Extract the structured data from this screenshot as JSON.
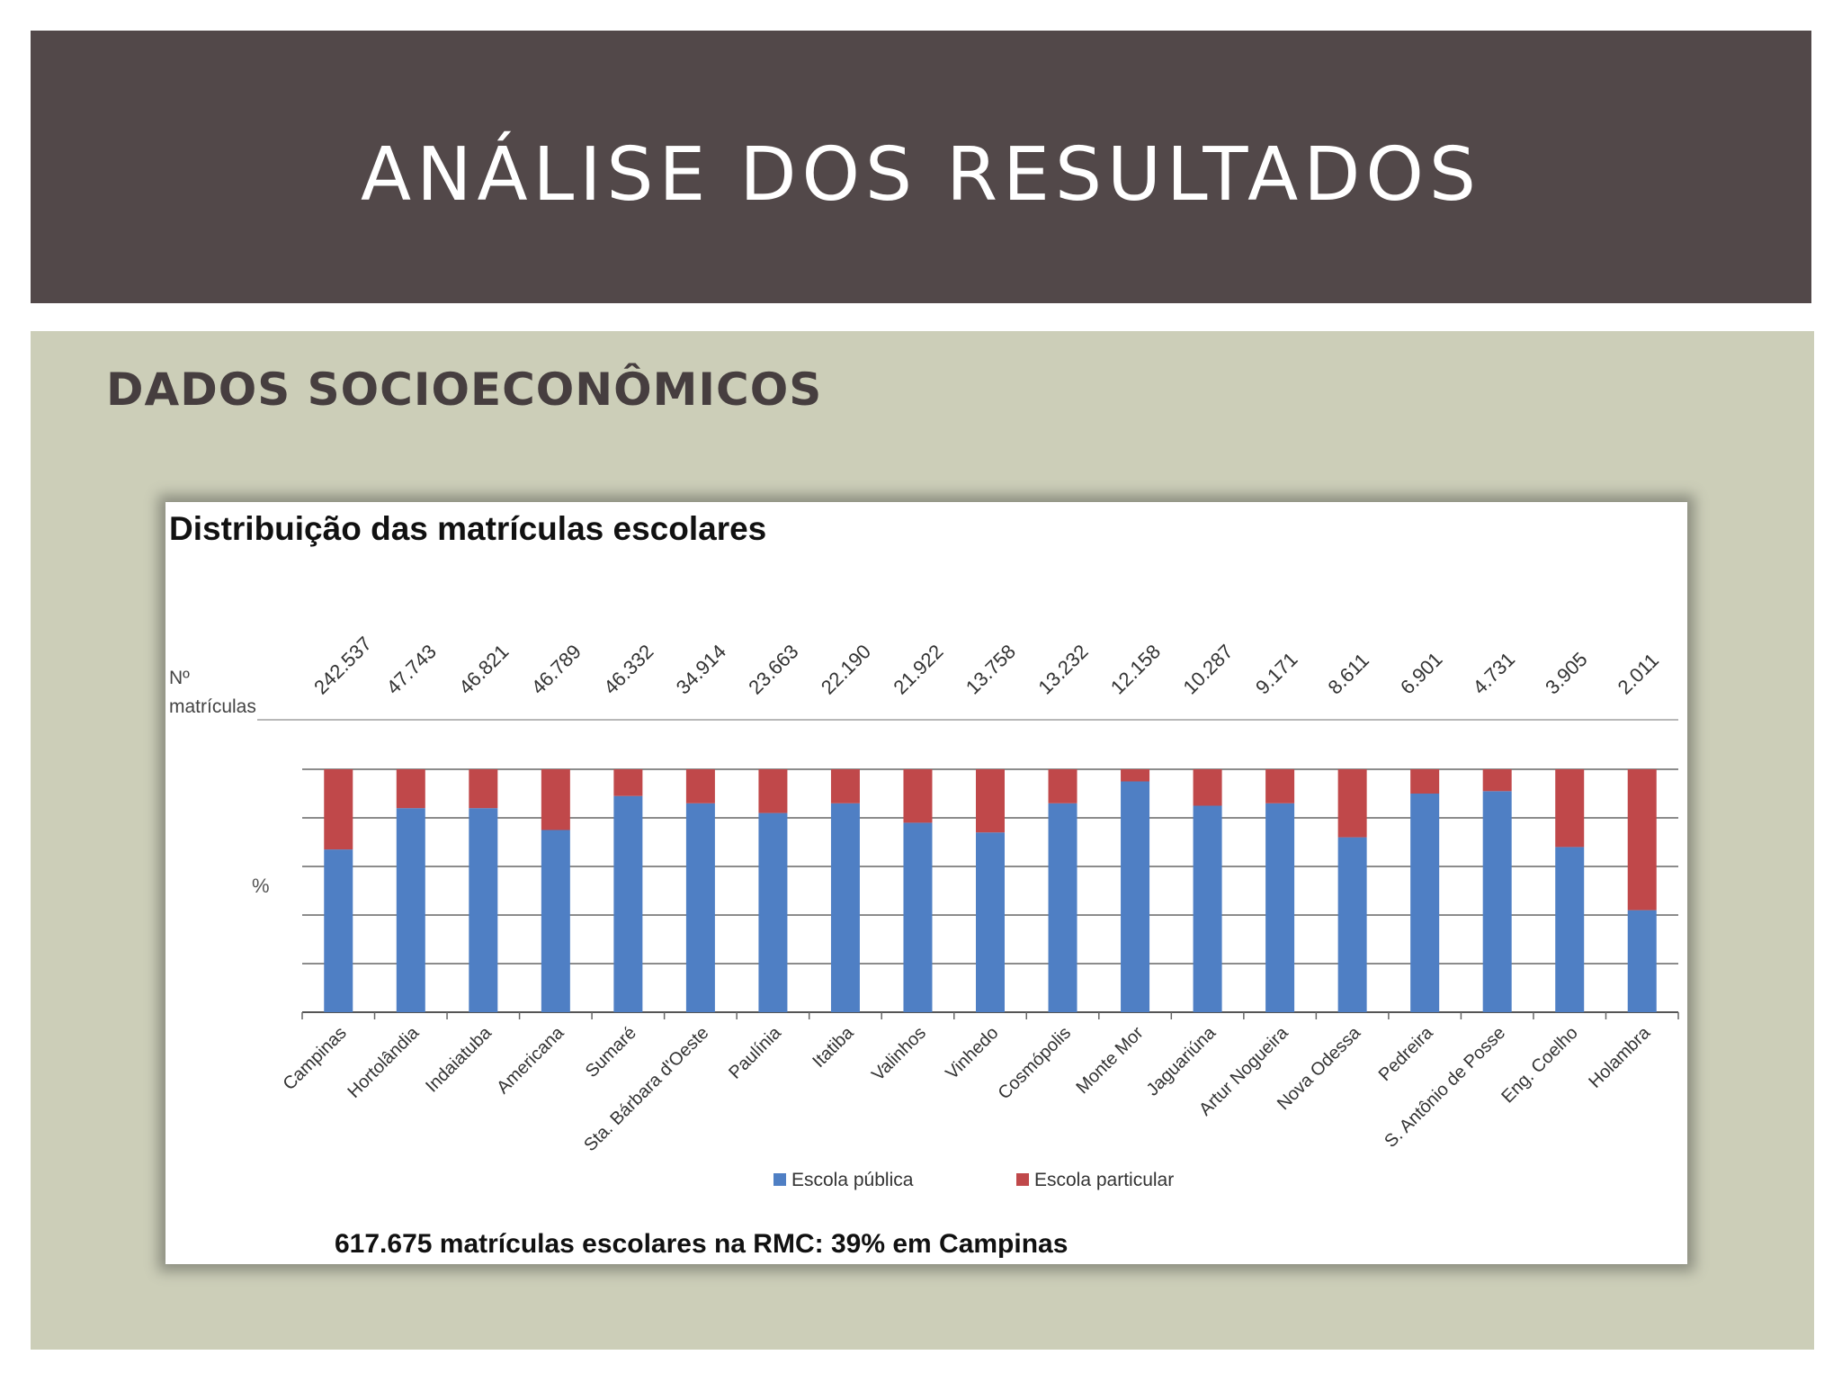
{
  "slide": {
    "title": "ANÁLISE DOS RESULTADOS",
    "section_heading": "DADOS SOCIOECONÔMICOS",
    "background_color": "#ccceb8",
    "title_bar_color": "#524849"
  },
  "chart_data": {
    "type": "bar",
    "stacked": true,
    "title": "Distribuição das matrículas escolares",
    "counts_label_line1": "Nº",
    "counts_label_line2": "matrículas",
    "ylabel": "%",
    "ylim": [
      0,
      100
    ],
    "grid": true,
    "legend_position": "bottom",
    "categories": [
      "Campinas",
      "Hortolândia",
      "Indaiatuba",
      "Americana",
      "Sumaré",
      "Sta. Bárbara d'Oeste",
      "Paulínia",
      "Itatiba",
      "Valinhos",
      "Vinhedo",
      "Cosmópolis",
      "Monte Mor",
      "Jaguariúna",
      "Artur Nogueira",
      "Nova Odessa",
      "Pedreira",
      "S. Antônio de Posse",
      "Eng. Coelho",
      "Holambra"
    ],
    "enrollments": [
      "242.537",
      "47.743",
      "46.821",
      "46.789",
      "46.332",
      "34.914",
      "23.663",
      "22.190",
      "21.922",
      "13.758",
      "13.232",
      "12.158",
      "10.287",
      "9.171",
      "8.611",
      "6.901",
      "4.731",
      "3.905",
      "2.011"
    ],
    "series": [
      {
        "name": "Escola pública",
        "color": "#4f7fc4",
        "values": [
          67,
          84,
          84,
          75,
          89,
          86,
          82,
          86,
          78,
          74,
          86,
          95,
          85,
          86,
          72,
          90,
          91,
          68,
          42
        ]
      },
      {
        "name": "Escola particular",
        "color": "#c0484a",
        "values": [
          33,
          16,
          16,
          25,
          11,
          14,
          18,
          14,
          22,
          26,
          14,
          5,
          15,
          14,
          28,
          10,
          9,
          32,
          58
        ]
      }
    ],
    "footnote": "617.675 matrículas escolares na RMC: 39% em Campinas"
  }
}
